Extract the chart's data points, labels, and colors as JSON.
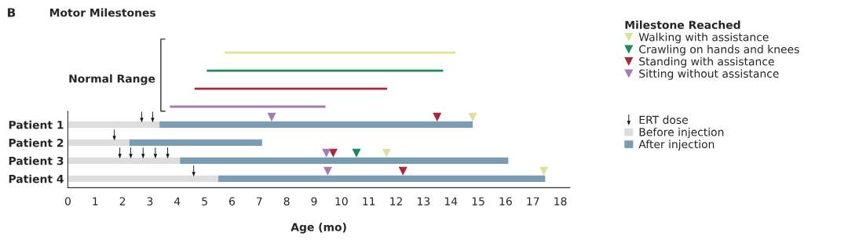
{
  "chart_data": {
    "type": "bar",
    "orientation": "horizontal",
    "title": "Motor Milestones",
    "xlabel": "Age (mo)",
    "legend_title": "Milestone Reached",
    "legend": "right",
    "annotations": [
      "B",
      "Normal Range"
    ],
    "categories": [
      null,
      null,
      null,
      null,
      "Patient 1",
      "Patient 2",
      "Patient 3",
      "Patient 4"
    ],
    "xlim": [
      0,
      18.35
    ],
    "xticks": [
      0,
      1,
      2,
      3,
      4,
      5,
      6,
      7,
      8,
      9,
      10,
      11,
      12,
      13,
      14,
      15,
      16,
      17,
      18
    ],
    "series": [
      {
        "name": "Walking with assistance",
        "type": "scatter",
        "marker": "triangle",
        "color": "#dfe196",
        "values": [
          null,
          null,
          null,
          null,
          14.8,
          null,
          11.65,
          17.4
        ]
      },
      {
        "name": "Crawling on hands and knees",
        "type": "scatter",
        "marker": "triangle",
        "color": "#1e8a57",
        "values": [
          null,
          null,
          null,
          null,
          null,
          null,
          10.55,
          null
        ]
      },
      {
        "name": "Standing with assistance",
        "type": "scatter",
        "marker": "triangle",
        "color": "#a82a3c",
        "values": [
          null,
          null,
          null,
          null,
          13.5,
          null,
          9.7,
          12.25
        ]
      },
      {
        "name": "Sitting without assistance",
        "type": "scatter",
        "marker": "triangle",
        "color": "#a47db6",
        "values": [
          null,
          null,
          null,
          null,
          7.45,
          null,
          9.45,
          9.5
        ]
      },
      {
        "name": "ERT dose",
        "type": "scatter",
        "color": "#1a1a1a",
        "values": [
          null,
          null,
          null,
          null,
          2.7,
          1.7,
          1.9,
          4.6
        ]
      },
      {
        "type": "scatter",
        "color": "#1a1a1a",
        "values": [
          null,
          null,
          null,
          null,
          3.1,
          null,
          2.3,
          null
        ]
      },
      {
        "type": "scatter",
        "color": "#1a1a1a",
        "values": [
          null,
          null,
          null,
          null,
          null,
          null,
          2.75,
          null
        ]
      },
      {
        "type": "scatter",
        "color": "#1a1a1a",
        "values": [
          null,
          null,
          null,
          null,
          null,
          null,
          3.2,
          null
        ]
      },
      {
        "type": "scatter",
        "color": "#1a1a1a",
        "values": [
          null,
          null,
          null,
          null,
          null,
          null,
          3.65,
          null
        ]
      },
      {
        "name": "Before injection",
        "color": "#dddddd",
        "base": [
          null,
          null,
          null,
          null,
          0,
          0,
          0,
          0
        ],
        "values": [
          null,
          null,
          null,
          null,
          3.35,
          2.25,
          4.1,
          5.5
        ]
      },
      {
        "name": "After injection",
        "color": "#7b9db3",
        "base": [
          null,
          null,
          null,
          null,
          3.35,
          2.25,
          4.1,
          5.5
        ],
        "values": [
          null,
          null,
          null,
          null,
          11.45,
          4.85,
          12.0,
          11.95
        ]
      },
      {
        "line_style": "solid",
        "colors": [
          "#dfe196",
          "#1e8a57",
          "#a82a3c",
          "#a47db6",
          null,
          null,
          null,
          null
        ],
        "base": [
          5.75,
          5.1,
          4.65,
          3.75,
          null,
          null,
          null,
          null
        ],
        "values": [
          8.4,
          8.6,
          7.0,
          5.65,
          null,
          null,
          null,
          null
        ]
      }
    ]
  }
}
